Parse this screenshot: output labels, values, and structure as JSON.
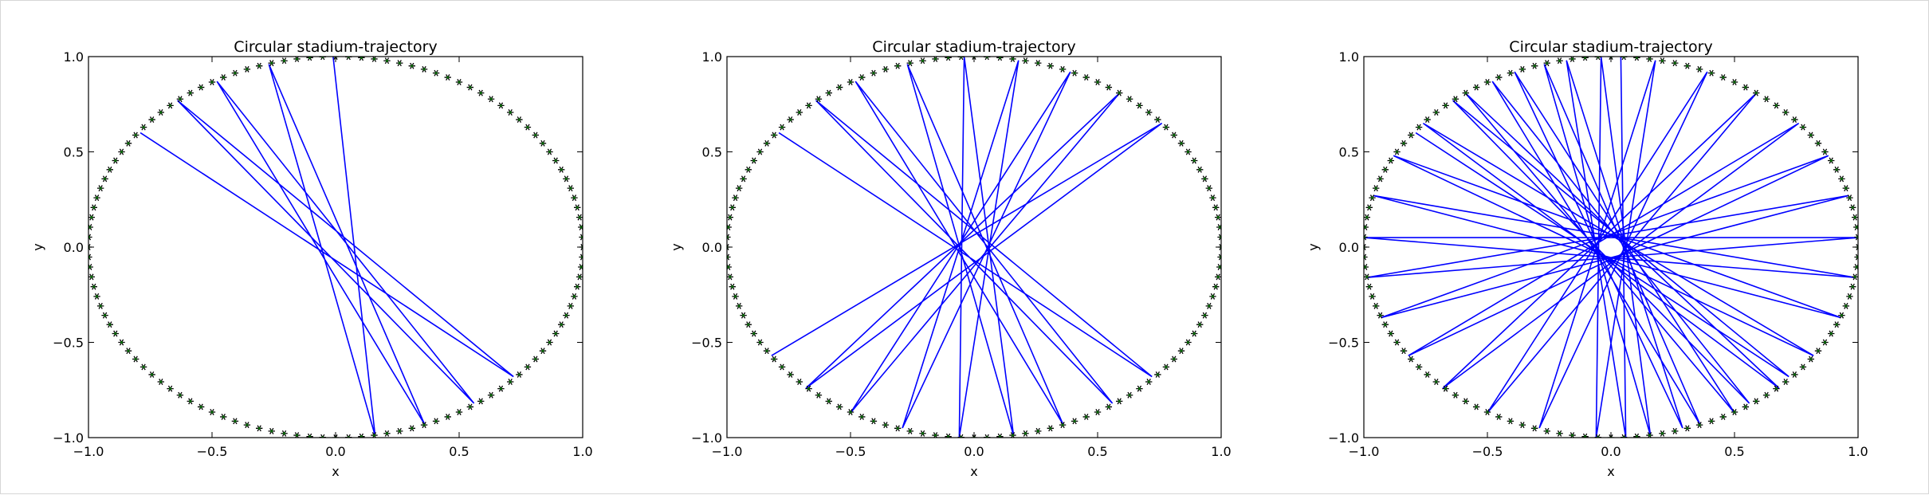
{
  "chart_data": [
    {
      "type": "line",
      "title": "Circular stadium-trajectory",
      "xlabel": "x",
      "ylabel": "y",
      "xlim": [
        -1.0,
        1.0
      ],
      "ylim": [
        -1.0,
        1.0
      ],
      "xticks": [
        "−1.0",
        "−0.5",
        "0.0",
        "0.5",
        "1.0"
      ],
      "yticks": [
        "−1.0",
        "−0.5",
        "0.0",
        "0.5",
        "1.0"
      ],
      "xtick_values": [
        -1.0,
        -0.5,
        0.0,
        0.5,
        1.0
      ],
      "ytick_values": [
        -1.0,
        -0.5,
        0.0,
        0.5,
        1.0
      ],
      "grid": false,
      "boundary": {
        "shape": "circle",
        "radius": 1.0,
        "marker": "star",
        "marker_color": "#006400",
        "marker_count": 120
      },
      "series": [
        {
          "color": "#0000ff",
          "points": [
            [
              -0.79,
              0.6
            ],
            [
              0.72,
              -0.68
            ],
            [
              -0.64,
              0.77
            ],
            [
              0.56,
              -0.82
            ],
            [
              -0.48,
              0.87
            ],
            [
              0.36,
              -0.93
            ],
            [
              -0.27,
              0.96
            ],
            [
              0.16,
              -0.99
            ],
            [
              -0.01,
              1.0
            ]
          ]
        }
      ]
    },
    {
      "type": "line",
      "title": "Circular stadium-trajectory",
      "xlabel": "x",
      "ylabel": "y",
      "xlim": [
        -1.0,
        1.0
      ],
      "ylim": [
        -1.0,
        1.0
      ],
      "xticks": [
        "−1.0",
        "−0.5",
        "0.0",
        "0.5",
        "1.0"
      ],
      "yticks": [
        "−1.0",
        "−0.5",
        "0.0",
        "0.5",
        "1.0"
      ],
      "xtick_values": [
        -1.0,
        -0.5,
        0.0,
        0.5,
        1.0
      ],
      "ytick_values": [
        -1.0,
        -0.5,
        0.0,
        0.5,
        1.0
      ],
      "grid": false,
      "boundary": {
        "shape": "circle",
        "radius": 1.0,
        "marker": "star",
        "marker_color": "#006400",
        "marker_count": 120
      },
      "series": [
        {
          "color": "#0000ff",
          "points": [
            [
              -0.79,
              0.6
            ],
            [
              0.72,
              -0.68
            ],
            [
              -0.64,
              0.77
            ],
            [
              0.56,
              -0.82
            ],
            [
              -0.48,
              0.87
            ],
            [
              0.36,
              -0.93
            ],
            [
              -0.27,
              0.96
            ],
            [
              0.16,
              -0.99
            ],
            [
              -0.04,
              1.0
            ],
            [
              -0.06,
              -1.0
            ],
            [
              0.18,
              0.98
            ],
            [
              -0.29,
              -0.95
            ],
            [
              0.39,
              0.92
            ],
            [
              -0.5,
              -0.87
            ],
            [
              0.59,
              0.81
            ],
            [
              -0.68,
              -0.74
            ],
            [
              0.76,
              0.65
            ],
            [
              -0.82,
              -0.57
            ]
          ]
        }
      ]
    },
    {
      "type": "line",
      "title": "Circular stadium-trajectory",
      "xlabel": "x",
      "ylabel": "y",
      "xlim": [
        -1.0,
        1.0
      ],
      "ylim": [
        -1.0,
        1.0
      ],
      "xticks": [
        "−1.0",
        "−0.5",
        "0.0",
        "0.5",
        "1.0"
      ],
      "yticks": [
        "−1.0",
        "−0.5",
        "0.0",
        "0.5",
        "1.0"
      ],
      "xtick_values": [
        -1.0,
        -0.5,
        0.0,
        0.5,
        1.0
      ],
      "ytick_values": [
        -1.0,
        -0.5,
        0.0,
        0.5,
        1.0
      ],
      "grid": false,
      "boundary": {
        "shape": "circle",
        "radius": 1.0,
        "marker": "star",
        "marker_color": "#006400",
        "marker_count": 120
      },
      "series": [
        {
          "color": "#0000ff",
          "points": [
            [
              -0.79,
              0.6
            ],
            [
              0.72,
              -0.68
            ],
            [
              -0.64,
              0.77
            ],
            [
              0.56,
              -0.82
            ],
            [
              -0.48,
              0.87
            ],
            [
              0.36,
              -0.93
            ],
            [
              -0.27,
              0.96
            ],
            [
              0.16,
              -0.99
            ],
            [
              -0.04,
              1.0
            ],
            [
              -0.06,
              -1.0
            ],
            [
              0.18,
              0.98
            ],
            [
              -0.29,
              -0.95
            ],
            [
              0.39,
              0.92
            ],
            [
              -0.5,
              -0.87
            ],
            [
              0.59,
              0.81
            ],
            [
              -0.68,
              -0.74
            ],
            [
              0.76,
              0.65
            ],
            [
              -0.82,
              -0.57
            ],
            [
              0.88,
              0.48
            ],
            [
              -0.93,
              -0.37
            ],
            [
              0.96,
              0.27
            ],
            [
              -0.99,
              -0.16
            ],
            [
              1.0,
              0.05
            ],
            [
              -1.0,
              0.05
            ],
            [
              0.99,
              -0.16
            ],
            [
              -0.96,
              0.27
            ],
            [
              0.93,
              -0.37
            ],
            [
              -0.88,
              0.48
            ],
            [
              0.82,
              -0.57
            ],
            [
              -0.76,
              0.65
            ],
            [
              0.68,
              -0.74
            ],
            [
              -0.59,
              0.81
            ],
            [
              0.5,
              -0.87
            ],
            [
              -0.39,
              0.92
            ],
            [
              0.29,
              -0.95
            ],
            [
              -0.18,
              0.98
            ],
            [
              0.06,
              -1.0
            ],
            [
              0.04,
              1.0
            ]
          ]
        }
      ]
    }
  ]
}
